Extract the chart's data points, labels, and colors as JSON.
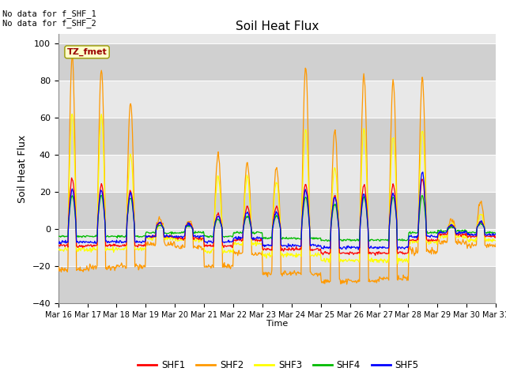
{
  "title": "Soil Heat Flux",
  "ylabel": "Soil Heat Flux",
  "xlabel": "Time",
  "ylim": [
    -40,
    105
  ],
  "yticks": [
    -40,
    -20,
    0,
    20,
    40,
    60,
    80,
    100
  ],
  "colors": {
    "SHF1": "#ff0000",
    "SHF2": "#ff9900",
    "SHF3": "#ffff00",
    "SHF4": "#00bb00",
    "SHF5": "#0000ff"
  },
  "legend_entries": [
    "SHF1",
    "SHF2",
    "SHF3",
    "SHF4",
    "SHF5"
  ],
  "tz_label": "TZ_fmet",
  "no_data_lines": [
    "No data for f_SHF_1",
    "No data for f_SHF_2"
  ],
  "plot_bg_color": "#e8e8e8",
  "band_colors": [
    "#d0d0d0",
    "#e8e8e8"
  ],
  "start_day": 16,
  "end_day": 31,
  "n_points": 720,
  "figsize": [
    6.4,
    4.8
  ],
  "dpi": 100
}
